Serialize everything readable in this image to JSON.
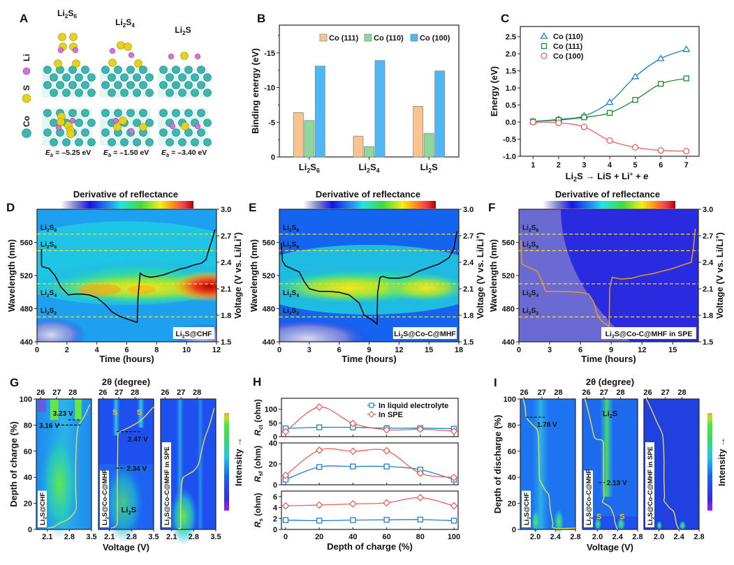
{
  "figure": {
    "panels": [
      "A",
      "B",
      "C",
      "D",
      "E",
      "F",
      "G",
      "H",
      "I"
    ]
  },
  "panelA": {
    "label": "A",
    "legend": [
      {
        "name": "Li",
        "color": "#d673d6"
      },
      {
        "name": "S",
        "color": "#e6d21a"
      },
      {
        "name": "Co",
        "color": "#3ab7b0"
      }
    ],
    "structures": [
      {
        "name": "Li2S6",
        "main": "Li",
        "sub1": "2",
        "mid": "S",
        "sub2": "6",
        "eb": "= –5.25 eV"
      },
      {
        "name": "Li2S4",
        "main": "Li",
        "sub1": "2",
        "mid": "S",
        "sub2": "4",
        "eb": "= –1.50 eV"
      },
      {
        "name": "Li2S",
        "main": "Li",
        "sub1": "2",
        "mid": "S",
        "sub2": "",
        "eb": "= –3.40 eV"
      }
    ],
    "eb_symbol": "E",
    "eb_sub": "b"
  },
  "chart_data": [
    {
      "id": "B",
      "type": "bar",
      "title": "",
      "ylabel": "Binding energy (eV)",
      "xlabel": "",
      "categories": [
        "Li2S6",
        "Li2S4",
        "Li2S"
      ],
      "category_labels": [
        {
          "a": "Li",
          "s1": "2",
          "b": "S",
          "s2": "6"
        },
        {
          "a": "Li",
          "s1": "2",
          "b": "S",
          "s2": "4"
        },
        {
          "a": "Li",
          "s1": "2",
          "b": "S",
          "s2": ""
        }
      ],
      "series": [
        {
          "name": "Co (111)",
          "color": "#f9c48f",
          "values": [
            -6.4,
            -3.0,
            -7.3
          ]
        },
        {
          "name": "Co (110)",
          "color": "#8fd89a",
          "values": [
            -5.25,
            -1.5,
            -3.4
          ]
        },
        {
          "name": "Co (100)",
          "color": "#4db8f5",
          "values": [
            -13.1,
            -13.9,
            -12.4
          ]
        }
      ],
      "ylim": [
        0,
        -19
      ],
      "yticks": [
        0,
        -5,
        -10,
        -15
      ],
      "ytick_labels": [
        "0",
        "-5",
        "-10",
        "-15"
      ],
      "legend": "top-right"
    },
    {
      "id": "C",
      "type": "line",
      "ylabel": "Energy (eV)",
      "xlabel_parts": {
        "a": "Li",
        "s1": "2",
        "b": "S",
        "arrow": "→",
        "c": "LiS + Li",
        "sup": "+",
        "d": " + ",
        "e": "e"
      },
      "x": [
        1,
        2,
        3,
        4,
        5,
        6,
        7
      ],
      "xlim": [
        0.5,
        7.5
      ],
      "ylim": [
        -1.0,
        2.8
      ],
      "yticks": [
        -1.0,
        -0.5,
        0.0,
        0.5,
        1.0,
        1.5,
        2.0,
        2.5
      ],
      "ytick_labels": [
        "-1.0",
        "-0.5",
        "0.0",
        "0.5",
        "1.0",
        "1.5",
        "2.0",
        "2.5"
      ],
      "series": [
        {
          "name": "Co (110)",
          "marker": "triangle",
          "color": "#1f7fc8",
          "values": [
            0.02,
            0.08,
            0.18,
            0.58,
            1.33,
            1.86,
            2.13
          ]
        },
        {
          "name": "Co (111)",
          "marker": "square",
          "color": "#1e8c2a",
          "values": [
            0.02,
            0.06,
            0.14,
            0.27,
            0.65,
            1.12,
            1.28
          ]
        },
        {
          "name": "Co (100)",
          "marker": "circle",
          "color": "#e8605c",
          "values": [
            0.0,
            -0.02,
            -0.14,
            -0.54,
            -0.74,
            -0.83,
            -0.85
          ]
        }
      ],
      "legend": "top-left"
    },
    {
      "id": "D",
      "type": "heatmap",
      "colorbar_title": "Derivative of reflectance",
      "xlabel": "Time (hours)",
      "ylabel": "Wavelength (nm)",
      "y2label": "Voltage (V vs. Li/Li+)",
      "xlim": [
        0,
        12
      ],
      "xticks": [
        0,
        2,
        4,
        6,
        8,
        10,
        12
      ],
      "ylim": [
        440,
        600
      ],
      "yticks": [
        440,
        480,
        520,
        560
      ],
      "y2lim": [
        1.5,
        3.0
      ],
      "y2ticks": [
        "1.5",
        "1.8",
        "2.1",
        "2.4",
        "2.7",
        "3.0"
      ],
      "species_lines": [
        {
          "label": "Li2S8",
          "nm": 570
        },
        {
          "label": "Li2S6",
          "nm": 550
        },
        {
          "label": "Li2S4",
          "nm": 510
        },
        {
          "label": "Li2S2",
          "nm": 470
        }
      ],
      "sample_label": "Li2S@CHF",
      "voltage_curve": {
        "t": [
          0.3,
          0.3,
          0.35,
          0.8,
          1.2,
          1.6,
          2.1,
          2.5,
          3,
          3.5,
          4,
          4.5,
          5,
          5.5,
          6,
          6.5,
          6.7,
          6.75,
          6.9,
          7.0,
          7.3,
          7.6,
          8,
          8.5,
          9,
          9.5,
          10,
          10.5,
          11,
          11.3,
          11.5,
          11.7,
          11.9
        ],
        "v": [
          2.55,
          2.37,
          2.35,
          2.33,
          2.25,
          2.12,
          2.03,
          2.04,
          2.04,
          2.03,
          2.0,
          1.93,
          1.84,
          1.79,
          1.76,
          1.73,
          1.72,
          2.0,
          2.28,
          2.26,
          2.24,
          2.23,
          2.24,
          2.26,
          2.29,
          2.32,
          2.34,
          2.37,
          2.39,
          2.43,
          2.55,
          2.65,
          2.77
        ],
        "color": "#000000"
      },
      "hot_band": "dense red/orange band near 500 nm at late time"
    },
    {
      "id": "E",
      "type": "heatmap",
      "colorbar_title": "Derivative of reflectance",
      "xlabel": "Time (hours)",
      "ylabel": "Wavelength (nm)",
      "y2label": "Voltage (V vs. Li/Li+)",
      "xlim": [
        0,
        18
      ],
      "xticks": [
        0,
        3,
        6,
        9,
        12,
        15,
        18
      ],
      "ylim": [
        440,
        600
      ],
      "yticks": [
        440,
        480,
        520,
        560
      ],
      "y2lim": [
        1.5,
        3.0
      ],
      "y2ticks": [
        "1.5",
        "1.8",
        "2.1",
        "2.4",
        "2.7",
        "3.0"
      ],
      "species_lines": [
        {
          "label": "Li2S8",
          "nm": 570
        },
        {
          "label": "Li2S6",
          "nm": 550
        },
        {
          "label": "Li2S4",
          "nm": 510
        },
        {
          "label": "Li2S2",
          "nm": 470
        }
      ],
      "sample_label": "Li2S@Co-C@MHF",
      "voltage_curve": {
        "t": [
          0.2,
          0.3,
          0.6,
          1.2,
          2,
          2.5,
          3,
          4,
          5,
          6,
          7,
          8,
          8.5,
          9,
          9.5,
          9.8,
          9.85,
          10.1,
          10.4,
          11,
          12,
          13,
          14,
          15,
          16,
          17,
          17.5,
          17.8
        ],
        "v": [
          2.62,
          2.42,
          2.36,
          2.33,
          2.29,
          2.18,
          2.1,
          2.07,
          2.07,
          2.06,
          2.03,
          1.94,
          1.8,
          1.77,
          1.73,
          1.7,
          2.05,
          2.23,
          2.24,
          2.22,
          2.22,
          2.24,
          2.3,
          2.34,
          2.38,
          2.45,
          2.55,
          2.75
        ],
        "color": "#000000"
      }
    },
    {
      "id": "F",
      "type": "heatmap",
      "colorbar_title": "Derivative of reflectance",
      "xlabel": "Time (hours)",
      "ylabel": "Wavelength (nm)",
      "y2label": "Voltage (V vs. Li/Li+)",
      "xlim": [
        0,
        17.5
      ],
      "xticks": [
        0,
        3,
        6,
        9,
        12,
        15
      ],
      "ylim": [
        440,
        600
      ],
      "yticks": [
        440,
        480,
        520,
        560
      ],
      "y2lim": [
        1.5,
        3.0
      ],
      "y2ticks": [
        "1.5",
        "1.8",
        "2.1",
        "2.4",
        "2.7",
        "3.0"
      ],
      "species_lines": [
        {
          "label": "Li2S8",
          "nm": 570
        },
        {
          "label": "Li2S6",
          "nm": 550
        },
        {
          "label": "Li2S4",
          "nm": 510
        },
        {
          "label": "Li2S2",
          "nm": 470
        }
      ],
      "sample_label": "Li2S@Co-C@MHF in SPE",
      "voltage_curve": {
        "t": [
          0.2,
          0.3,
          1,
          1.8,
          2.3,
          2.6,
          4,
          6,
          6.8,
          7.3,
          7.6,
          8,
          8.5,
          8.8,
          8.85,
          9.1,
          9.5,
          10,
          11,
          12,
          13,
          14,
          15,
          16,
          16.8,
          17,
          17.2
        ],
        "v": [
          2.65,
          2.38,
          2.34,
          2.3,
          2.17,
          2.07,
          2.07,
          2.06,
          2.04,
          1.95,
          1.82,
          1.74,
          1.7,
          1.67,
          2.1,
          2.23,
          2.22,
          2.21,
          2.22,
          2.25,
          2.27,
          2.3,
          2.33,
          2.37,
          2.4,
          2.55,
          2.78
        ],
        "color": "#e0a020"
      }
    },
    {
      "id": "G",
      "type": "heatmap",
      "top_label": "2θ (degree)",
      "xlabel": "Voltage (V)",
      "ylabel": "Depth of charge (%)",
      "colorbar_label": "Intensity",
      "subpanels": [
        {
          "sample": "Li2S@CHF",
          "xticks": [
            "2.1",
            "2.8",
            "3.5"
          ],
          "topticks": [
            "26",
            "27",
            "28"
          ],
          "annotations": [
            {
              "text": "3.23 V",
              "doc": 84
            },
            {
              "text": "3.16 V",
              "doc": 80
            }
          ],
          "voltage_curve": {
            "v": [
              2.1,
              2.3,
              2.5,
              2.7,
              2.9,
              3.0,
              3.02,
              3.0,
              3.0,
              3.02,
              3.05,
              3.1,
              3.2,
              3.3,
              3.45
            ],
            "doc": [
              1,
              2,
              5,
              7,
              11,
              15,
              18,
              30,
              50,
              65,
              75,
              80,
              84,
              88,
              96
            ]
          }
        },
        {
          "sample": "Li2S@Co-C@MHF",
          "xticks": [
            "2.1",
            "2.8",
            "3.5"
          ],
          "topticks": [
            "26",
            "27",
            "28"
          ],
          "labels": [
            "S",
            "S",
            "Li2S"
          ],
          "annotations": [
            {
              "text": "2.47 V",
              "doc": 75
            },
            {
              "text": "2.34 V",
              "doc": 47
            }
          ],
          "voltage_curve": {
            "v": [
              2.15,
              2.32,
              2.35,
              2.35,
              2.36,
              2.37,
              2.45,
              2.7,
              3.0,
              3.2,
              3.35,
              3.5
            ],
            "doc": [
              1,
              3,
              10,
              40,
              60,
              73,
              75,
              78,
              82,
              86,
              90,
              94
            ]
          }
        },
        {
          "sample": "Li2S@Co-C@MHF in SPE",
          "xticks": [
            "2.1",
            "2.8",
            "3.5"
          ],
          "topticks": [
            "26",
            "27",
            "28"
          ],
          "voltage_curve": {
            "v": [
              2.3,
              2.38,
              2.39,
              2.4,
              2.45,
              2.6,
              2.8,
              2.95,
              3.05,
              3.15,
              3.3,
              3.45
            ],
            "doc": [
              1,
              1,
              10,
              30,
              39,
              42,
              45,
              50,
              60,
              70,
              80,
              93
            ]
          }
        }
      ]
    },
    {
      "id": "H",
      "type": "line",
      "xlabel": "Depth of charge (%)",
      "x": [
        0,
        20,
        40,
        60,
        80,
        100
      ],
      "legend_entries": [
        "In liquid electrolyte",
        "In SPE"
      ],
      "legend": "top-right",
      "subplots": [
        {
          "ylabel": "Rct (ohm)",
          "ylab_main": "R",
          "ylab_sub": "ct",
          "ylim": [
            0,
            140
          ],
          "yticks": [
            0,
            50,
            100
          ],
          "series": [
            {
              "name": "In liquid electrolyte",
              "color": "#1f7fc8",
              "marker": "square",
              "values": [
                30,
                34,
                34,
                31,
                31,
                29
              ]
            },
            {
              "name": "In SPE",
              "color": "#e8605c",
              "marker": "diamond",
              "values": [
                18,
                108,
                48,
                25,
                27,
                20
              ]
            }
          ]
        },
        {
          "ylabel": "Rsf (ohm)",
          "ylab_main": "R",
          "ylab_sub": "sf",
          "ylim": [
            0,
            40
          ],
          "yticks": [
            0,
            20,
            40
          ],
          "series": [
            {
              "name": "In liquid electrolyte",
              "color": "#1f7fc8",
              "marker": "square",
              "values": [
                5,
                17,
                17.5,
                17.5,
                14.5,
                5
              ]
            },
            {
              "name": "In SPE",
              "color": "#e8605c",
              "marker": "diamond",
              "values": [
                9,
                33,
                32,
                32.5,
                11,
                7
              ]
            }
          ]
        },
        {
          "ylabel": "Rs (ohm)",
          "ylab_main": "R",
          "ylab_sub": "s",
          "ylim": [
            0,
            7
          ],
          "yticks": [
            0,
            2,
            4,
            6
          ],
          "series": [
            {
              "name": "In liquid electrolyte",
              "color": "#1f7fc8",
              "marker": "square",
              "values": [
                1.7,
                1.6,
                1.7,
                1.75,
                1.8,
                1.6
              ]
            },
            {
              "name": "In SPE",
              "color": "#e8605c",
              "marker": "diamond",
              "values": [
                4.3,
                4.45,
                4.65,
                4.85,
                5.8,
                4.3
              ]
            }
          ]
        }
      ]
    },
    {
      "id": "I",
      "type": "heatmap",
      "top_label": "2θ (degree)",
      "xlabel": "Voltage (V)",
      "ylabel": "Depth of discharge (%)",
      "colorbar_label": "Intensity",
      "subpanels": [
        {
          "sample": "Li2S@CHF",
          "xticks": [
            "2.0",
            "2.4",
            "2.8"
          ],
          "topticks": [
            "26",
            "27",
            "28"
          ],
          "annotations": [
            {
              "text": "1.78 V",
              "doc": 86
            }
          ],
          "voltage_curve": {
            "v": [
              1.76,
              1.8,
              1.82,
              1.95,
              2.05,
              2.07,
              2.08,
              2.1,
              2.2,
              2.27,
              2.3,
              2.35,
              2.38,
              2.8
            ],
            "doc": [
              100,
              93,
              86,
              80,
              75,
              60,
              40,
              37,
              30,
              26,
              15,
              5,
              1,
              1
            ]
          }
        },
        {
          "sample": "Li2S@Co-C@MHF",
          "xticks": [
            "2.0",
            "2.4",
            "2.8"
          ],
          "topticks": [
            "26",
            "27",
            "28"
          ],
          "labels": [
            "Li2S",
            "S",
            "S"
          ],
          "annotations": [
            {
              "text": "2.13 V",
              "doc": 36
            }
          ],
          "voltage_curve": {
            "v": [
              1.75,
              1.82,
              1.88,
              1.95,
              2.1,
              2.12,
              2.12,
              2.13,
              2.1,
              2.25,
              2.33,
              2.35,
              2.4
            ],
            "doc": [
              100,
              90,
              80,
              70,
              68,
              60,
              40,
              25,
              21,
              17,
              10,
              5,
              0
            ]
          }
        },
        {
          "sample": "Li2S@Co-C@MHF in SPE",
          "xticks": [
            "2.0",
            "2.4",
            "2.8"
          ],
          "topticks": [
            "26",
            "27",
            "28"
          ],
          "voltage_curve": {
            "v": [
              1.75,
              1.85,
              1.95,
              2.05,
              2.08,
              2.1,
              2.1,
              2.11,
              2.1,
              2.2,
              2.3,
              2.35,
              2.4
            ],
            "doc": [
              100,
              92,
              83,
              75,
              70,
              55,
              40,
              25,
              22,
              17,
              13,
              4,
              0
            ]
          }
        }
      ]
    }
  ]
}
